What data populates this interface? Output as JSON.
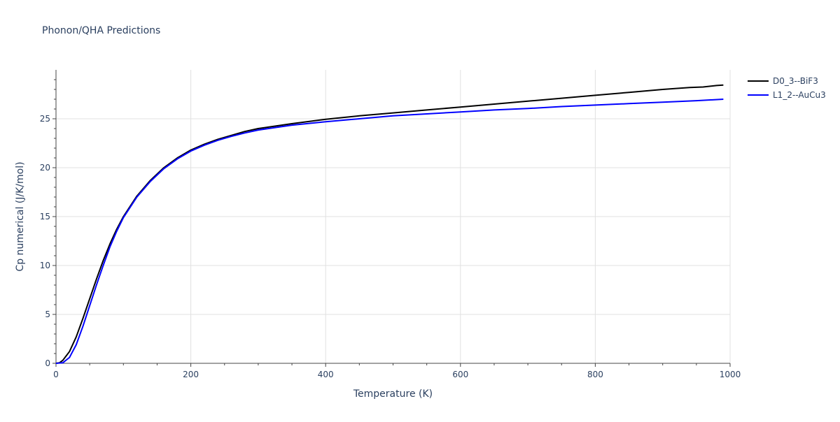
{
  "chart_data": {
    "type": "line",
    "title": "Phonon/QHA Predictions",
    "xlabel": "Temperature (K)",
    "ylabel": "Cp numerical (J/K/mol)",
    "xlim": [
      0,
      1000
    ],
    "ylim": [
      0,
      30
    ],
    "x_ticks": [
      "0",
      "200",
      "400",
      "600",
      "800",
      "1000"
    ],
    "y_ticks": [
      "0",
      "5",
      "10",
      "15",
      "20",
      "25"
    ],
    "grid": true,
    "legend_position": "top-right",
    "series": [
      {
        "name": "D0_3--BiF3",
        "color": "#000000",
        "x": [
          0,
          5,
          10,
          20,
          30,
          40,
          50,
          60,
          70,
          80,
          90,
          100,
          120,
          140,
          160,
          180,
          200,
          220,
          240,
          260,
          280,
          300,
          350,
          400,
          450,
          500,
          550,
          600,
          650,
          700,
          750,
          800,
          850,
          900,
          940,
          960,
          980,
          990
        ],
        "y": [
          0,
          0.05,
          0.3,
          1.2,
          2.7,
          4.6,
          6.6,
          8.6,
          10.5,
          12.2,
          13.7,
          15.0,
          17.1,
          18.7,
          20.0,
          21.0,
          21.8,
          22.4,
          22.9,
          23.3,
          23.7,
          24.0,
          24.5,
          24.95,
          25.3,
          25.6,
          25.9,
          26.2,
          26.5,
          26.8,
          27.1,
          27.4,
          27.7,
          28.0,
          28.2,
          28.25,
          28.4,
          28.45
        ]
      },
      {
        "name": "L1_2--AuCu3",
        "color": "#0000ff",
        "x": [
          0,
          10,
          20,
          30,
          40,
          50,
          60,
          70,
          80,
          90,
          100,
          120,
          140,
          160,
          180,
          200,
          220,
          240,
          260,
          280,
          300,
          350,
          400,
          450,
          500,
          550,
          600,
          650,
          700,
          750,
          800,
          850,
          900,
          950,
          990
        ],
        "y": [
          0,
          0.05,
          0.6,
          1.9,
          3.8,
          5.9,
          8.0,
          10.0,
          11.9,
          13.5,
          14.9,
          17.0,
          18.6,
          19.9,
          20.9,
          21.7,
          22.3,
          22.8,
          23.2,
          23.55,
          23.85,
          24.35,
          24.7,
          25.0,
          25.3,
          25.5,
          25.7,
          25.9,
          26.05,
          26.25,
          26.4,
          26.55,
          26.7,
          26.85,
          27.0
        ]
      }
    ]
  }
}
